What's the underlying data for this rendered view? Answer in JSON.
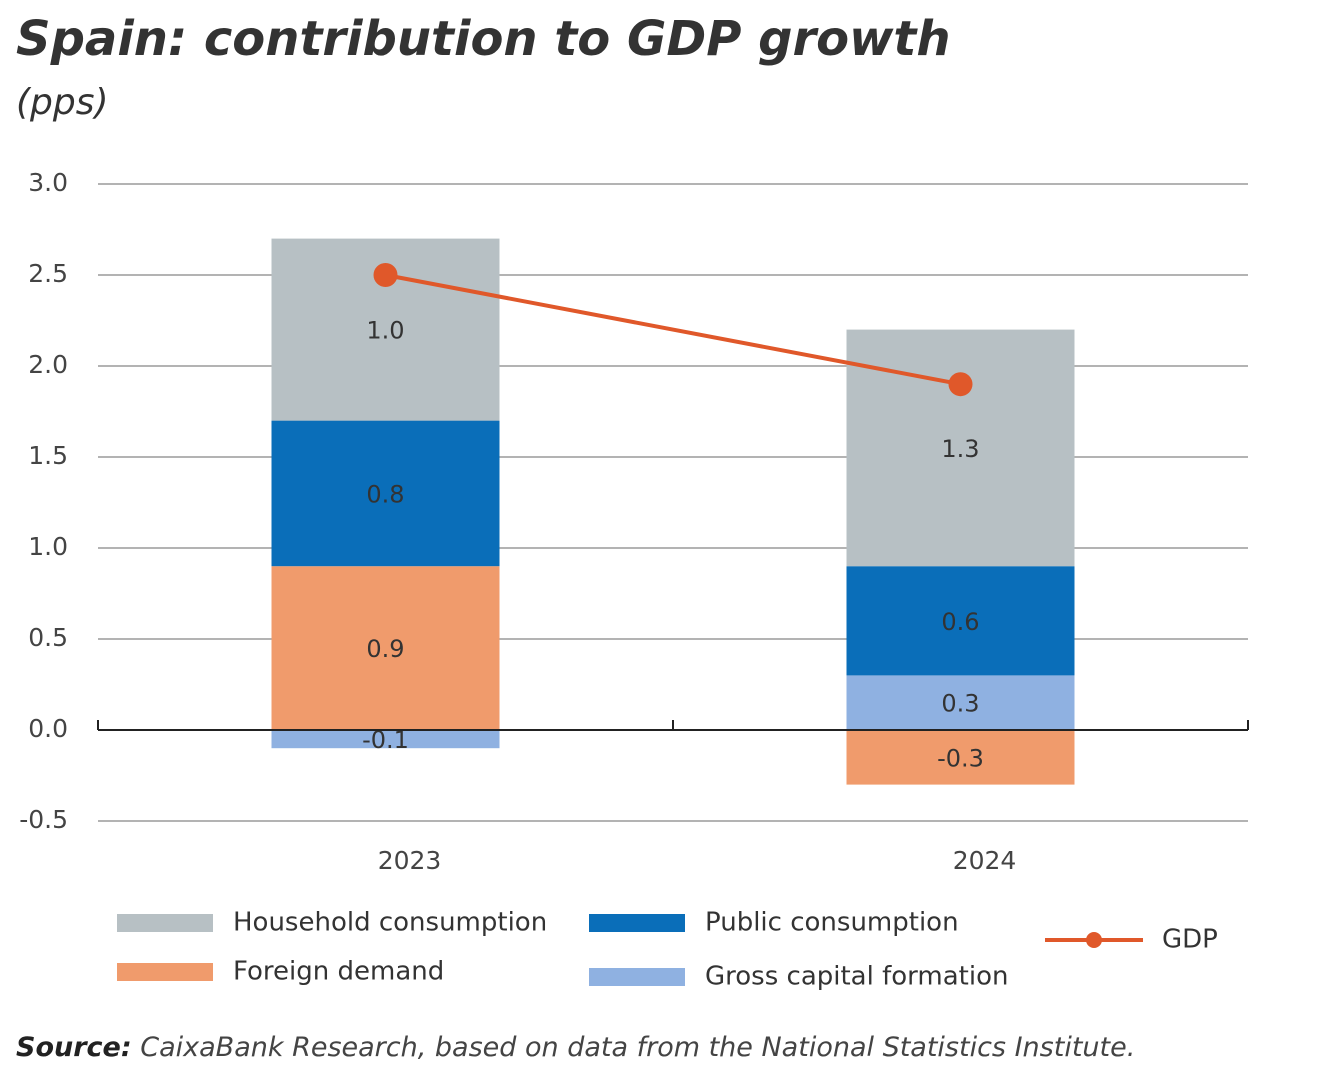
{
  "chart_data": {
    "type": "bar",
    "stacked": true,
    "title": "Spain: contribution to GDP growth",
    "subtitle": "(pps)",
    "categories": [
      "2023",
      "2024"
    ],
    "series": [
      {
        "name": "Household consumption",
        "color": "#b7c0c4",
        "values": [
          1.0,
          1.3
        ],
        "value_labels": [
          "1.0",
          "1.3"
        ]
      },
      {
        "name": "Public consumption",
        "color": "#0a6eb9",
        "values": [
          0.8,
          0.6
        ],
        "value_labels": [
          "0.8",
          "0.6"
        ]
      },
      {
        "name": "Foreign demand",
        "color": "#f09b6c",
        "values": [
          0.9,
          -0.3
        ],
        "value_labels": [
          "0.9",
          "-0.3"
        ]
      },
      {
        "name": "Gross capital formation",
        "color": "#8fb1e1",
        "values": [
          -0.1,
          0.3
        ],
        "value_labels": [
          "-0.1",
          "0.3"
        ]
      },
      {
        "name": "GDP",
        "type": "line",
        "color": "#e0582a",
        "values": [
          2.5,
          1.9
        ]
      }
    ],
    "stack_order": [
      "Foreign demand",
      "Gross capital formation",
      "Public consumption",
      "Household consumption"
    ],
    "ylim": [
      -0.5,
      3.0
    ],
    "yticks": [
      -0.5,
      {
        "value": 0,
        "label": "0.0"
      },
      0.5,
      {
        "value": 1,
        "label": "1.0"
      },
      1.5,
      {
        "value": 2,
        "label": "2.0"
      },
      2.5,
      {
        "value": 3,
        "label": "3.0"
      }
    ],
    "grid": true,
    "source": {
      "label": "Source:",
      "text": "CaixaBank Research, based on data from the National Statistics Institute."
    }
  }
}
